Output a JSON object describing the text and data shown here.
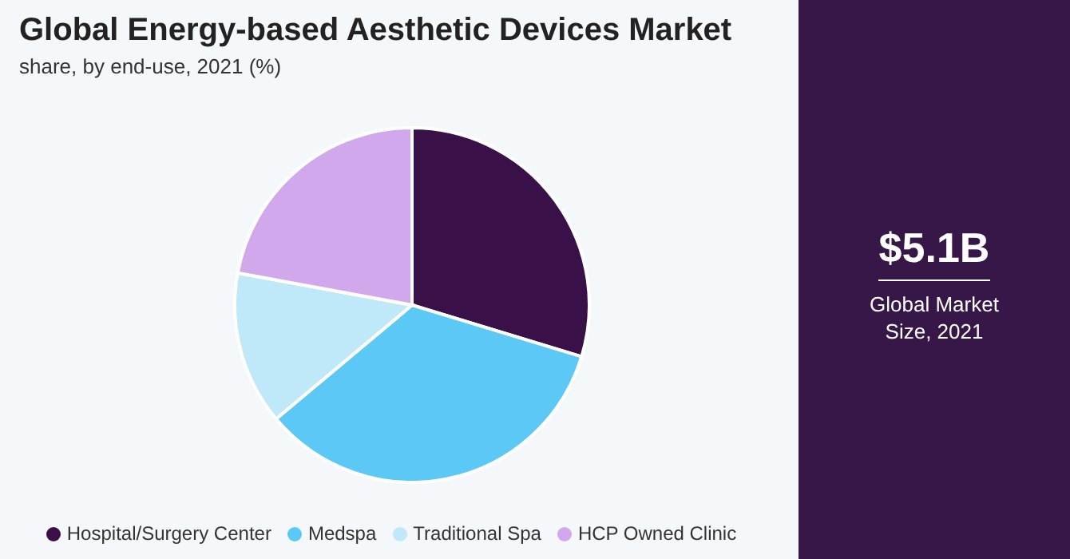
{
  "chart_data": {
    "type": "pie",
    "title": "Global Energy-based Aesthetic Devices Market",
    "subtitle": "share, by end-use, 2021 (%)",
    "categories": [
      "Hospital/Surgery Center",
      "Medspa",
      "Traditional Spa",
      "HCP Owned Clinic"
    ],
    "values": [
      29.7,
      34.2,
      14.0,
      22.1
    ],
    "colors": [
      "#3a1048",
      "#5bc8f5",
      "#bfe9f9",
      "#d2a8ec"
    ],
    "legend": "bottom",
    "annotations": [
      "$5.1B",
      "Global Market Size, 2021"
    ]
  }
}
